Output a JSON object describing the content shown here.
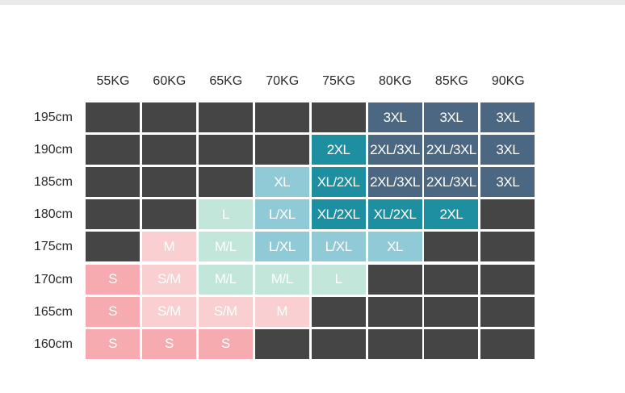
{
  "weights": [
    "55KG",
    "60KG",
    "65KG",
    "70KG",
    "75KG",
    "80KG",
    "85KG",
    "90KG"
  ],
  "heights": [
    "195cm",
    "190cm",
    "185cm",
    "180cm",
    "175cm",
    "170cm",
    "165cm",
    "160cm"
  ],
  "cells": [
    [
      {
        "size": "",
        "tone": "dark"
      },
      {
        "size": "",
        "tone": "dark"
      },
      {
        "size": "",
        "tone": "dark"
      },
      {
        "size": "",
        "tone": "dark"
      },
      {
        "size": "",
        "tone": "dark"
      },
      {
        "size": "3XL",
        "tone": "slate"
      },
      {
        "size": "3XL",
        "tone": "slate"
      },
      {
        "size": "3XL",
        "tone": "slate"
      }
    ],
    [
      {
        "size": "",
        "tone": "dark"
      },
      {
        "size": "",
        "tone": "dark"
      },
      {
        "size": "",
        "tone": "dark"
      },
      {
        "size": "",
        "tone": "dark"
      },
      {
        "size": "2XL",
        "tone": "teal"
      },
      {
        "size": "2XL/3XL",
        "tone": "slate"
      },
      {
        "size": "2XL/3XL",
        "tone": "slate"
      },
      {
        "size": "3XL",
        "tone": "slate"
      }
    ],
    [
      {
        "size": "",
        "tone": "dark"
      },
      {
        "size": "",
        "tone": "dark"
      },
      {
        "size": "",
        "tone": "dark"
      },
      {
        "size": "XL",
        "tone": "light-blue"
      },
      {
        "size": "XL/2XL",
        "tone": "teal"
      },
      {
        "size": "2XL/3XL",
        "tone": "slate"
      },
      {
        "size": "2XL/3XL",
        "tone": "slate"
      },
      {
        "size": "3XL",
        "tone": "slate"
      }
    ],
    [
      {
        "size": "",
        "tone": "dark"
      },
      {
        "size": "",
        "tone": "dark"
      },
      {
        "size": "L",
        "tone": "mint"
      },
      {
        "size": "L/XL",
        "tone": "light-blue"
      },
      {
        "size": "XL/2XL",
        "tone": "teal"
      },
      {
        "size": "XL/2XL",
        "tone": "teal"
      },
      {
        "size": "2XL",
        "tone": "teal"
      },
      {
        "size": "",
        "tone": "dark"
      }
    ],
    [
      {
        "size": "",
        "tone": "dark"
      },
      {
        "size": "M",
        "tone": "light-pink"
      },
      {
        "size": "M/L",
        "tone": "mint"
      },
      {
        "size": "L/XL",
        "tone": "light-blue"
      },
      {
        "size": "L/XL",
        "tone": "light-blue"
      },
      {
        "size": "XL",
        "tone": "light-blue"
      },
      {
        "size": "",
        "tone": "dark"
      },
      {
        "size": "",
        "tone": "dark"
      }
    ],
    [
      {
        "size": "S",
        "tone": "pink"
      },
      {
        "size": "S/M",
        "tone": "light-pink"
      },
      {
        "size": "M/L",
        "tone": "mint"
      },
      {
        "size": "M/L",
        "tone": "mint"
      },
      {
        "size": "L",
        "tone": "mint"
      },
      {
        "size": "",
        "tone": "dark"
      },
      {
        "size": "",
        "tone": "dark"
      },
      {
        "size": "",
        "tone": "dark"
      }
    ],
    [
      {
        "size": "S",
        "tone": "pink"
      },
      {
        "size": "S/M",
        "tone": "light-pink"
      },
      {
        "size": "S/M",
        "tone": "light-pink"
      },
      {
        "size": "M",
        "tone": "light-pink"
      },
      {
        "size": "",
        "tone": "dark"
      },
      {
        "size": "",
        "tone": "dark"
      },
      {
        "size": "",
        "tone": "dark"
      },
      {
        "size": "",
        "tone": "dark"
      }
    ],
    [
      {
        "size": "S",
        "tone": "pink"
      },
      {
        "size": "S",
        "tone": "pink"
      },
      {
        "size": "S",
        "tone": "pink"
      },
      {
        "size": "",
        "tone": "dark"
      },
      {
        "size": "",
        "tone": "dark"
      },
      {
        "size": "",
        "tone": "dark"
      },
      {
        "size": "",
        "tone": "dark"
      },
      {
        "size": "",
        "tone": "dark"
      }
    ]
  ],
  "tone_colors": {
    "dark": "#454545",
    "pink": "#f6abb0",
    "light-pink": "#f9cfd1",
    "mint": "#c2e6d9",
    "light-blue": "#90cad6",
    "teal": "#1e8fa0",
    "slate": "#4b6782"
  }
}
